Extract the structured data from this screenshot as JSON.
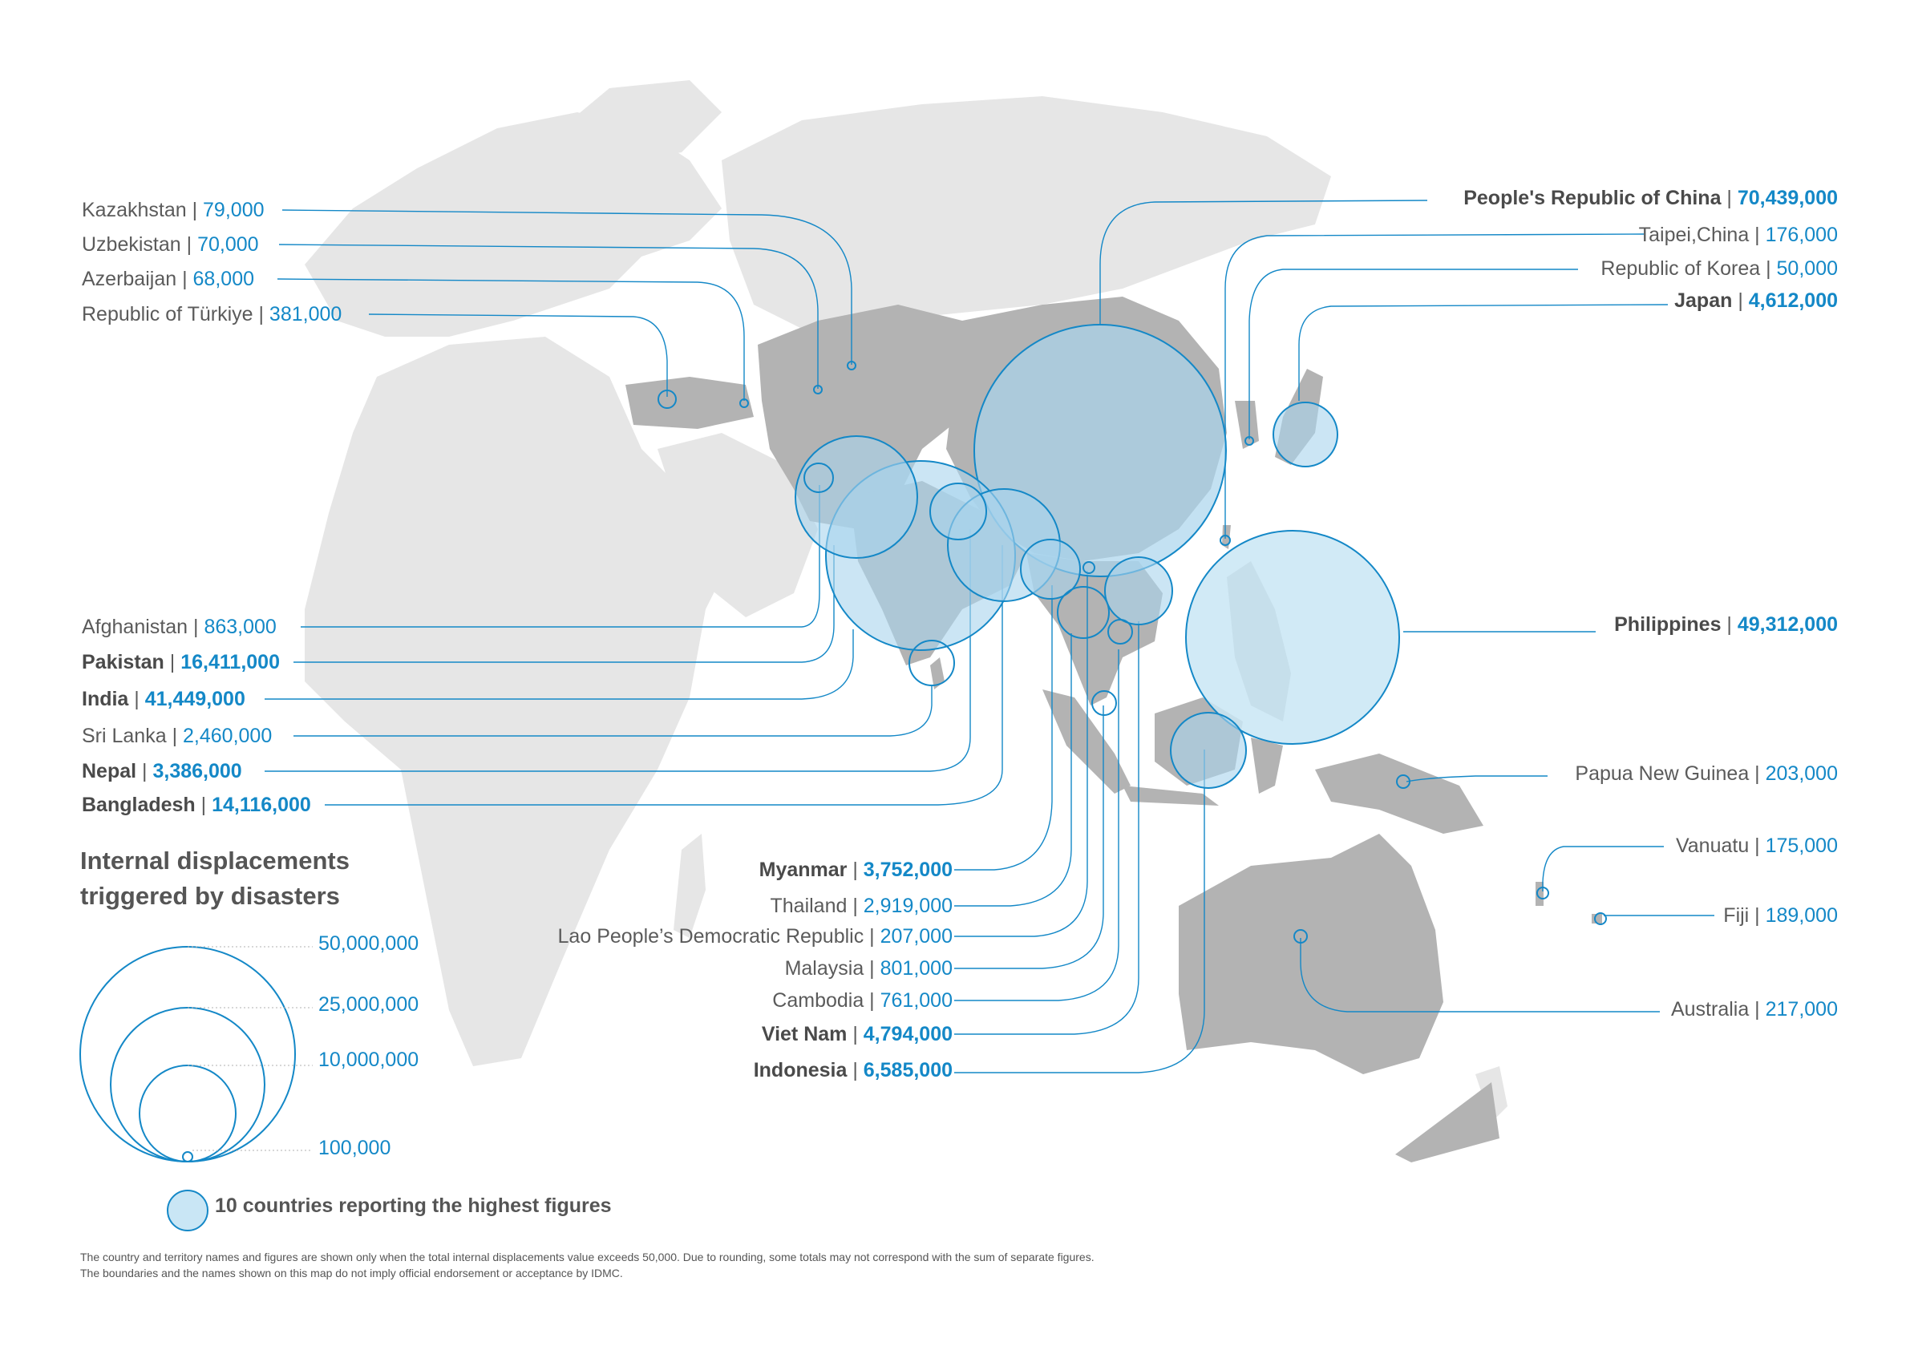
{
  "colors": {
    "land_other": "#e6e6e6",
    "land_region": "#b3b3b3",
    "accent": "#1488c7",
    "bubble_fill": "#c9e6f5",
    "label_text": "#5b5b5b"
  },
  "labels_left_top": [
    {
      "name": "Kazakhstan",
      "value": "79,000",
      "bold": false
    },
    {
      "name": "Uzbekistan",
      "value": "70,000",
      "bold": false
    },
    {
      "name": "Azerbaijan",
      "value": "68,000",
      "bold": false
    },
    {
      "name": "Republic of Türkiye",
      "value": "381,000",
      "bold": false
    }
  ],
  "labels_left_mid": [
    {
      "name": "Afghanistan",
      "value": "863,000",
      "bold": false
    },
    {
      "name": "Pakistan",
      "value": "16,411,000",
      "bold": true
    },
    {
      "name": "India",
      "value": "41,449,000",
      "bold": true
    },
    {
      "name": "Sri Lanka",
      "value": "2,460,000",
      "bold": false
    },
    {
      "name": "Nepal",
      "value": "3,386,000",
      "bold": true
    },
    {
      "name": "Bangladesh",
      "value": "14,116,000",
      "bold": true
    }
  ],
  "labels_center": [
    {
      "name": "Myanmar",
      "value": "3,752,000",
      "bold": true
    },
    {
      "name": "Thailand",
      "value": "2,919,000",
      "bold": false
    },
    {
      "name": "Lao People’s Democratic Republic",
      "value": "207,000",
      "bold": false
    },
    {
      "name": "Malaysia",
      "value": "801,000",
      "bold": false
    },
    {
      "name": "Cambodia",
      "value": "761,000",
      "bold": false
    },
    {
      "name": "Viet Nam",
      "value": "4,794,000",
      "bold": true
    },
    {
      "name": "Indonesia",
      "value": "6,585,000",
      "bold": true
    }
  ],
  "labels_right": [
    {
      "name": "People's Republic of China",
      "value": "70,439,000",
      "bold": true
    },
    {
      "name": "Taipei,China",
      "value": "176,000",
      "bold": false
    },
    {
      "name": "Republic of Korea",
      "value": "50,000",
      "bold": false
    },
    {
      "name": "Japan",
      "value": "4,612,000",
      "bold": true
    },
    {
      "name": "Philippines",
      "value": "49,312,000",
      "bold": true
    },
    {
      "name": "Papua New Guinea",
      "value": "203,000",
      "bold": false
    },
    {
      "name": "Vanuatu",
      "value": "175,000",
      "bold": false
    },
    {
      "name": "Fiji",
      "value": "189,000",
      "bold": false
    },
    {
      "name": "Australia",
      "value": "217,000",
      "bold": false
    }
  ],
  "legend": {
    "title_line1": "Internal displacements",
    "title_line2": "triggered by disasters",
    "scale": [
      {
        "label": "50,000,000",
        "amount": 50000000
      },
      {
        "label": "25,000,000",
        "amount": 25000000
      },
      {
        "label": "10,000,000",
        "amount": 10000000
      },
      {
        "label": "100,000",
        "amount": 100000
      }
    ],
    "top10_label": "10 countries reporting the highest figures"
  },
  "footnote": {
    "line1": "The country and territory names and figures are shown only when the total internal displacements value exceeds 50,000. Due to rounding, some totals may not correspond with the sum of separate figures.",
    "line2": "The boundaries and the names shown on this map do not imply official endorsement or acceptance by IDMC."
  }
}
